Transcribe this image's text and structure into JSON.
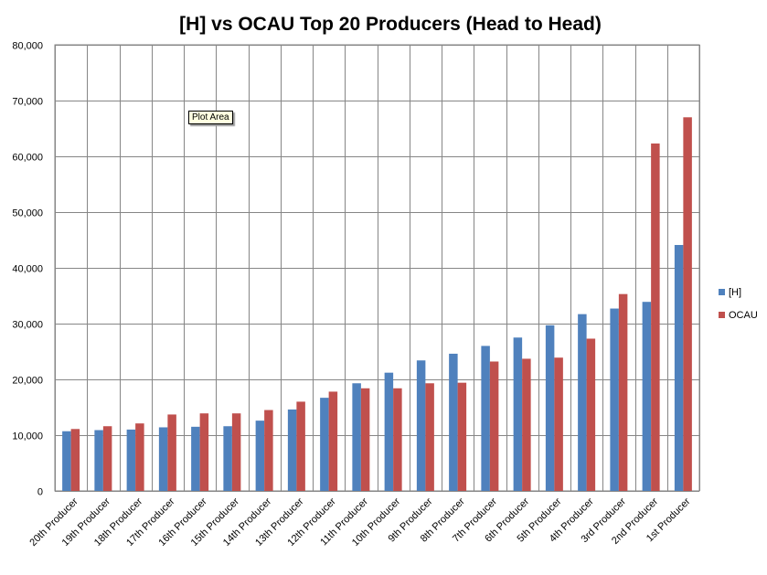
{
  "tooltip": "Plot Area",
  "chart_data": {
    "type": "bar",
    "title": "[H] vs OCAU Top 20 Producers (Head to Head)",
    "xlabel": "",
    "ylabel": "",
    "ylim": [
      0,
      80000
    ],
    "yticks": [
      "0",
      "10,000",
      "20,000",
      "30,000",
      "40,000",
      "50,000",
      "60,000",
      "70,000",
      "80,000"
    ],
    "grid": true,
    "legend_position": "right",
    "categories": [
      "20th Producer",
      "19th Producer",
      "18th Producer",
      "17th Producer",
      "16th Producer",
      "15th Producer",
      "14th Producer",
      "13th Producer",
      "12th Producer",
      "11th Producer",
      "10th Producer",
      "9th Producer",
      "8th Producer",
      "7th Producer",
      "6th Producer",
      "5th Producer",
      "4th Producer",
      "3rd Producer",
      "2nd Producer",
      "1st Producer"
    ],
    "series": [
      {
        "name": "[H]",
        "color": "#4F81BD",
        "values": [
          10700,
          10900,
          11000,
          11400,
          11500,
          11600,
          12600,
          14600,
          16700,
          19300,
          21200,
          23400,
          24600,
          26000,
          27500,
          29700,
          31700,
          32700,
          33900,
          44100
        ]
      },
      {
        "name": "OCAU",
        "color": "#C0504D",
        "values": [
          11100,
          11600,
          12100,
          13700,
          13900,
          13900,
          14500,
          16000,
          17800,
          18400,
          18400,
          19300,
          19400,
          23200,
          23700,
          23900,
          27300,
          35300,
          62300,
          67000
        ]
      }
    ]
  }
}
